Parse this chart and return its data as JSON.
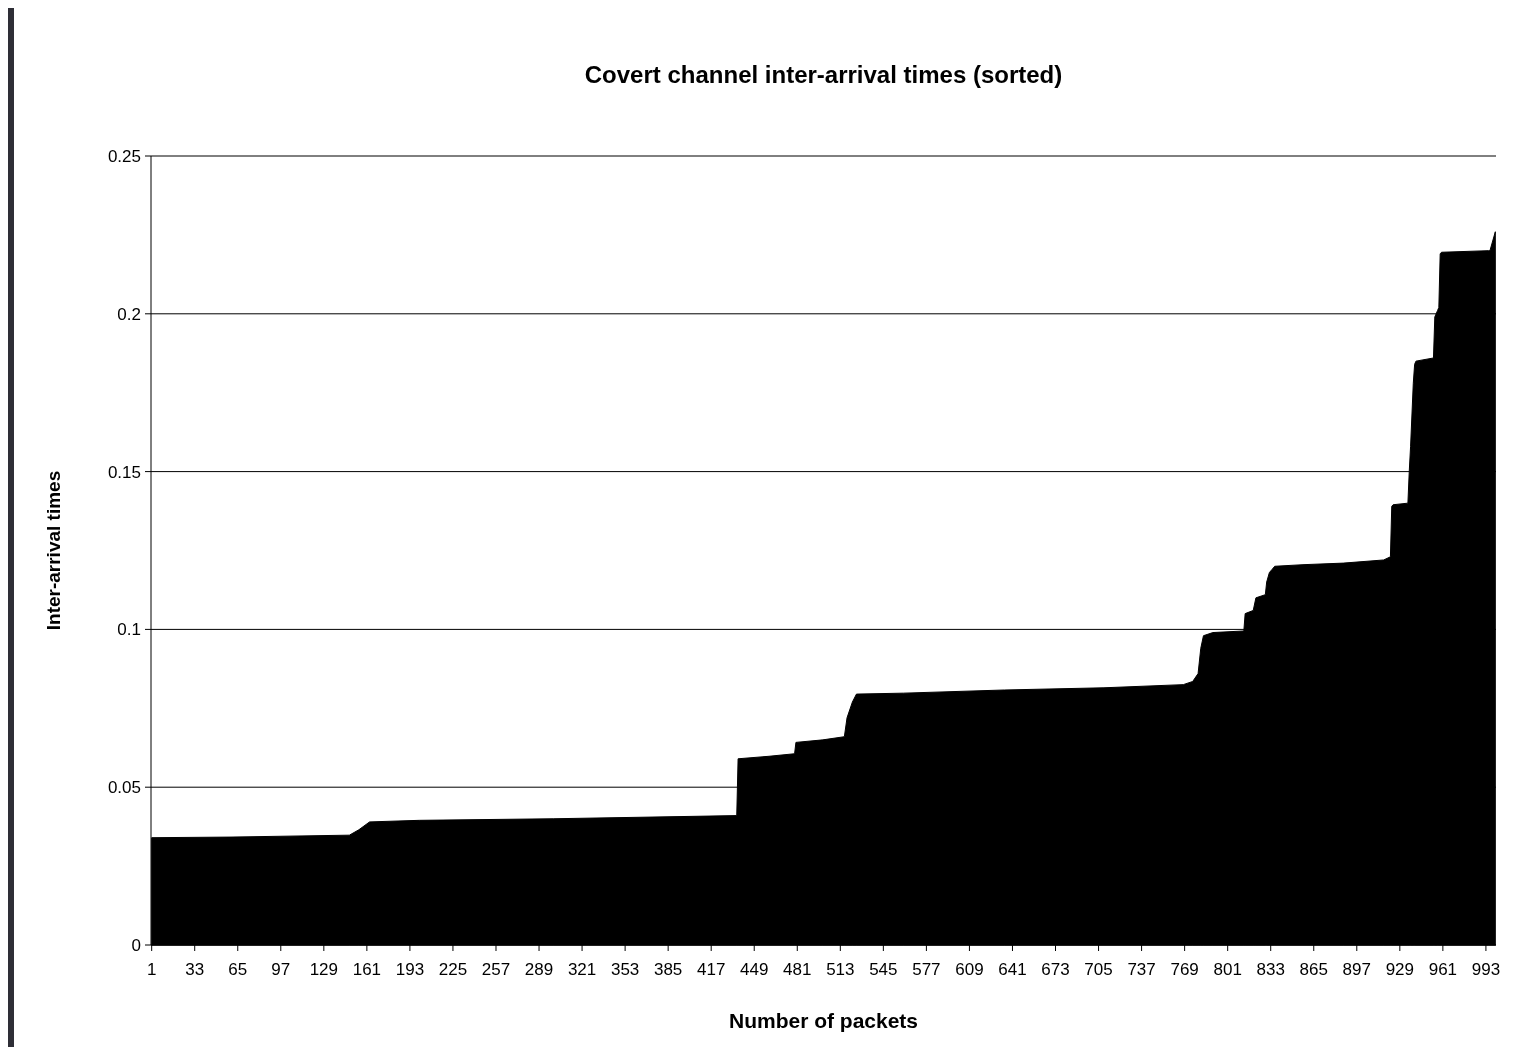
{
  "chart_data": {
    "type": "area",
    "title": "Covert channel inter-arrival times (sorted)",
    "xlabel": "Number of packets",
    "ylabel": "Inter-arrival times",
    "x": [
      1,
      60,
      148,
      155,
      163,
      200,
      300,
      436,
      437,
      460,
      479,
      480,
      500,
      516,
      518,
      522,
      525,
      560,
      635,
      709,
      768,
      775,
      779,
      781,
      783,
      790,
      813,
      814,
      820,
      822,
      829,
      830,
      832,
      834,
      836,
      857,
      887,
      917,
      922,
      923,
      924,
      935,
      936,
      937,
      939,
      940,
      941,
      954,
      955,
      957,
      958,
      959,
      960,
      995,
      996,
      1000
    ],
    "series": [
      {
        "color": "#000000",
        "values": [
          0.034,
          0.0342,
          0.0348,
          0.0365,
          0.039,
          0.0395,
          0.04,
          0.041,
          0.059,
          0.0598,
          0.0606,
          0.0642,
          0.065,
          0.066,
          0.072,
          0.077,
          0.0795,
          0.0798,
          0.0808,
          0.0815,
          0.0825,
          0.0835,
          0.086,
          0.094,
          0.098,
          0.099,
          0.0995,
          0.105,
          0.106,
          0.11,
          0.111,
          0.115,
          0.118,
          0.119,
          0.12,
          0.1205,
          0.121,
          0.122,
          0.123,
          0.139,
          0.1395,
          0.14,
          0.15,
          0.158,
          0.178,
          0.184,
          0.185,
          0.186,
          0.199,
          0.201,
          0.202,
          0.219,
          0.2195,
          0.22,
          0.22,
          0.226
        ]
      }
    ],
    "xlim": [
      0.5,
      1000.5
    ],
    "xticks": [
      1,
      33,
      65,
      97,
      129,
      161,
      193,
      225,
      257,
      289,
      321,
      353,
      385,
      417,
      449,
      481,
      513,
      545,
      577,
      609,
      641,
      673,
      705,
      737,
      769,
      801,
      833,
      865,
      897,
      929,
      961,
      993
    ],
    "ylim": [
      0,
      0.25
    ],
    "yticks": [
      0,
      0.05,
      0.1,
      0.15,
      0.2,
      0.25
    ],
    "grid": "y"
  }
}
